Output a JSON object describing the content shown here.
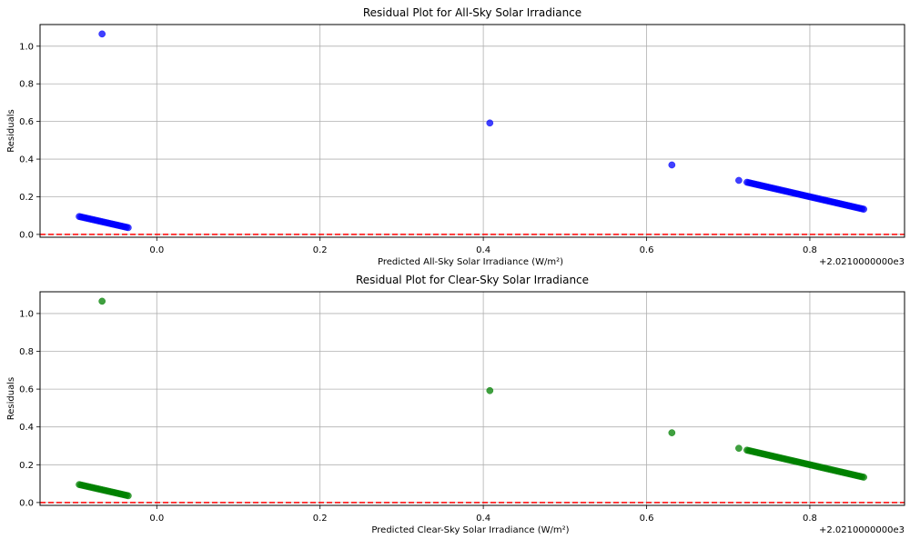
{
  "chart_data": [
    {
      "type": "scatter",
      "title": "Residual Plot for All-Sky Solar Irradiance",
      "xlabel": "Predicted All-Sky Solar Irradiance (W/m²)",
      "ylabel": "Residuals",
      "offset_label": "+2.0210000000e3",
      "xlim": [
        -0.143,
        0.916
      ],
      "ylim": [
        -0.015,
        1.115
      ],
      "xticks": [
        0.0,
        0.2,
        0.4,
        0.6,
        0.8
      ],
      "xtick_labels": [
        "0.0",
        "0.2",
        "0.4",
        "0.6",
        "0.8"
      ],
      "yticks": [
        0.0,
        0.2,
        0.4,
        0.6,
        0.8,
        1.0
      ],
      "ytick_labels": [
        "0.0",
        "0.2",
        "0.4",
        "0.6",
        "0.8",
        "1.0"
      ],
      "grid": true,
      "point_color": "#0000ff",
      "reference_line": {
        "y": 0,
        "color": "#ff0000",
        "style": "dashed"
      },
      "outliers": [
        {
          "x": -0.067,
          "y": 1.065
        },
        {
          "x": 0.408,
          "y": 0.592
        },
        {
          "x": 0.631,
          "y": 0.369
        },
        {
          "x": 0.713,
          "y": 0.287
        }
      ],
      "segments": [
        {
          "x_start": -0.095,
          "x_end": -0.035,
          "y_start": 0.095,
          "y_end": 0.036,
          "count": 30
        },
        {
          "x_start": 0.723,
          "x_end": 0.866,
          "y_start": 0.277,
          "y_end": 0.134,
          "count": 70
        }
      ]
    },
    {
      "type": "scatter",
      "title": "Residual Plot for Clear-Sky Solar Irradiance",
      "xlabel": "Predicted Clear-Sky Solar Irradiance (W/m²)",
      "ylabel": "Residuals",
      "offset_label": "+2.0210000000e3",
      "xlim": [
        -0.143,
        0.916
      ],
      "ylim": [
        -0.015,
        1.115
      ],
      "xticks": [
        0.0,
        0.2,
        0.4,
        0.6,
        0.8
      ],
      "xtick_labels": [
        "0.0",
        "0.2",
        "0.4",
        "0.6",
        "0.8"
      ],
      "yticks": [
        0.0,
        0.2,
        0.4,
        0.6,
        0.8,
        1.0
      ],
      "ytick_labels": [
        "0.0",
        "0.2",
        "0.4",
        "0.6",
        "0.8",
        "1.0"
      ],
      "grid": true,
      "point_color": "#008000",
      "reference_line": {
        "y": 0,
        "color": "#ff0000",
        "style": "dashed"
      },
      "outliers": [
        {
          "x": -0.067,
          "y": 1.065
        },
        {
          "x": 0.408,
          "y": 0.592
        },
        {
          "x": 0.631,
          "y": 0.369
        },
        {
          "x": 0.713,
          "y": 0.287
        }
      ],
      "segments": [
        {
          "x_start": -0.095,
          "x_end": -0.035,
          "y_start": 0.095,
          "y_end": 0.036,
          "count": 30
        },
        {
          "x_start": 0.723,
          "x_end": 0.866,
          "y_start": 0.277,
          "y_end": 0.134,
          "count": 70
        }
      ]
    }
  ]
}
